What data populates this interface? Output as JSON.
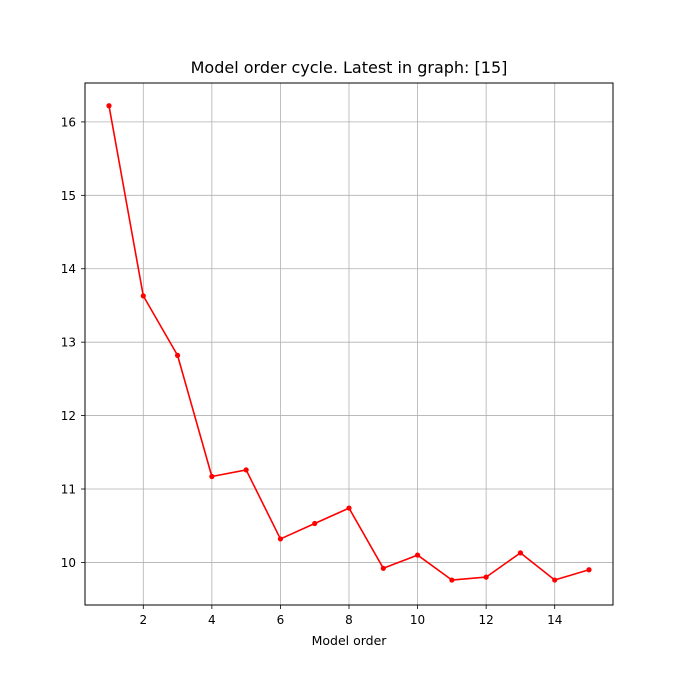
{
  "chart_data": {
    "type": "line",
    "title": "Model order cycle. Latest in graph: [15]",
    "xlabel": "Model order",
    "ylabel": "",
    "xlim": [
      0.3,
      15.7
    ],
    "ylim": [
      9.42,
      16.53
    ],
    "x_ticks": [
      2,
      4,
      6,
      8,
      10,
      12,
      14
    ],
    "y_ticks": [
      10,
      11,
      12,
      13,
      14,
      15,
      16
    ],
    "grid": true,
    "color": "#ff0000",
    "series": [
      {
        "x": [
          1,
          2,
          3,
          4,
          5,
          6,
          7,
          8,
          9,
          10,
          11,
          12,
          13,
          14,
          15
        ],
        "values": [
          16.22,
          13.63,
          12.82,
          11.17,
          11.26,
          10.32,
          10.53,
          10.74,
          9.92,
          10.1,
          9.76,
          9.8,
          10.13,
          9.76,
          9.9
        ]
      }
    ]
  }
}
